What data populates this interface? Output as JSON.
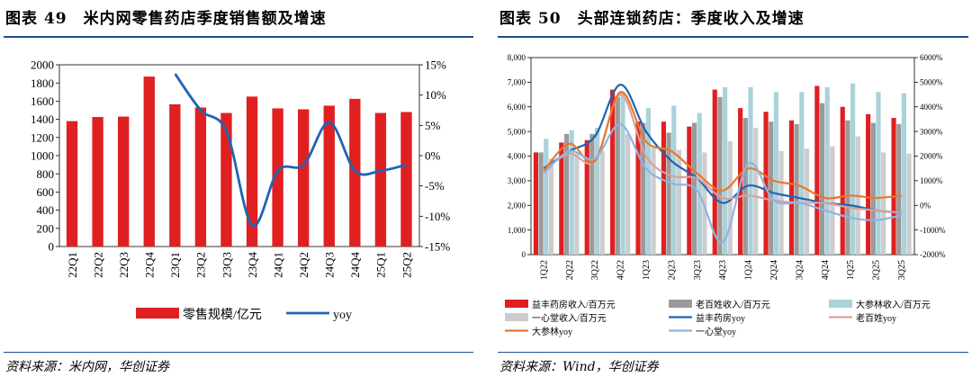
{
  "charts": {
    "left": {
      "title": "图表 49　米内网零售药店季度销售额及增速",
      "source": "资料来源：米内网，华创证券"
    },
    "right": {
      "title": "图表 50　头部连锁药店：季度收入及增速",
      "source": "资料来源：Wind，华创证券"
    }
  },
  "chart_data": [
    {
      "type": "bar",
      "title": "米内网零售药店季度销售额及增速",
      "categories": [
        "22Q1",
        "22Q2",
        "22Q3",
        "22Q4",
        "23Q1",
        "23Q2",
        "23Q3",
        "23Q4",
        "24Q1",
        "24Q2",
        "24Q3",
        "24Q4",
        "25Q1",
        "25Q2"
      ],
      "series": [
        {
          "name": "零售规模/亿元",
          "type": "bar",
          "axis": "left",
          "color": "#e02020",
          "values": [
            1380,
            1425,
            1430,
            1870,
            1565,
            1530,
            1470,
            1650,
            1520,
            1510,
            1550,
            1625,
            1470,
            1480
          ]
        },
        {
          "name": "yoy",
          "type": "line",
          "axis": "right",
          "color": "#1f64b4",
          "values": [
            null,
            null,
            null,
            null,
            13.5,
            7.5,
            4.0,
            -11.5,
            -2.5,
            -1.5,
            5.5,
            -2.5,
            -2.5,
            -1.5
          ]
        }
      ],
      "yleft": {
        "min": 0,
        "max": 2000,
        "ticks": [
          0,
          200,
          400,
          600,
          800,
          1000,
          1200,
          1400,
          1600,
          1800,
          2000
        ]
      },
      "yright": {
        "min": -15,
        "max": 15,
        "ticks": [
          -15,
          -10,
          -5,
          0,
          5,
          10,
          15
        ],
        "tick_labels": [
          "-15%",
          "-10%",
          "-5%",
          "0%",
          "5%",
          "10%",
          "15%"
        ]
      },
      "legend_position": "bottom"
    },
    {
      "type": "bar",
      "title": "头部连锁药店：季度收入及增速",
      "categories": [
        "1Q22",
        "2Q22",
        "3Q22",
        "4Q22",
        "1Q23",
        "2Q23",
        "3Q23",
        "4Q23",
        "1Q24",
        "2Q24",
        "3Q24",
        "4Q24",
        "1Q25",
        "2Q25",
        "3Q25"
      ],
      "series": [
        {
          "name": "益丰药房收入/百万元",
          "type": "bar",
          "axis": "left",
          "color": "#e02020",
          "values": [
            4150,
            4550,
            4650,
            6700,
            5400,
            5400,
            5200,
            6700,
            5950,
            5800,
            5450,
            6850,
            6000,
            5700,
            5550
          ]
        },
        {
          "name": "老百姓收入/百万元",
          "type": "bar",
          "axis": "left",
          "color": "#9a9a9a",
          "values": [
            4150,
            4900,
            4900,
            6400,
            5350,
            4950,
            5350,
            6400,
            5550,
            5400,
            5300,
            6150,
            5450,
            5350,
            5300
          ]
        },
        {
          "name": "大参林收入/百万元",
          "type": "bar",
          "axis": "left",
          "color": "#a9d2db",
          "values": [
            4700,
            5050,
            5150,
            6600,
            5950,
            6050,
            5750,
            6800,
            6800,
            6600,
            6600,
            6800,
            6950,
            6600,
            6550
          ]
        },
        {
          "name": "一心堂收入/百万元",
          "type": "bar",
          "axis": "left",
          "color": "#cdcdcd",
          "values": [
            3900,
            4100,
            4200,
            4900,
            4350,
            4250,
            4150,
            4600,
            5150,
            4200,
            4300,
            4400,
            4800,
            4150,
            4100
          ]
        },
        {
          "name": "益丰药房yoy",
          "type": "line",
          "axis": "right",
          "color": "#1f64b4",
          "values": [
            1500,
            2200,
            2800,
            4900,
            3000,
            1800,
            1100,
            100,
            800,
            500,
            300,
            100,
            0,
            -200,
            -300
          ]
        },
        {
          "name": "老百姓yoy",
          "type": "line",
          "axis": "right",
          "color": "#d9a0a0",
          "values": [
            1400,
            2100,
            1800,
            4500,
            2000,
            1200,
            1100,
            300,
            400,
            200,
            100,
            100,
            -100,
            -200,
            -300
          ]
        },
        {
          "name": "大参林yoy",
          "type": "line",
          "axis": "right",
          "color": "#e8782d",
          "values": [
            1400,
            2500,
            1800,
            4600,
            2600,
            2200,
            1300,
            600,
            1500,
            1000,
            800,
            300,
            400,
            300,
            400
          ]
        },
        {
          "name": "一心堂yoy",
          "type": "line",
          "axis": "right",
          "color": "#8eb4e0",
          "values": [
            1300,
            2200,
            1900,
            3300,
            1500,
            900,
            600,
            -1500,
            1700,
            200,
            100,
            -200,
            -500,
            -600,
            -400
          ]
        }
      ],
      "yleft": {
        "min": 0,
        "max": 8000,
        "ticks": [
          0,
          1000,
          2000,
          3000,
          4000,
          5000,
          6000,
          7000,
          8000
        ],
        "tick_labels": [
          "0",
          "1,000",
          "2,000",
          "3,000",
          "4,000",
          "5,000",
          "6,000",
          "7,000",
          "8,000"
        ]
      },
      "yright": {
        "min": -2000,
        "max": 6000,
        "ticks": [
          -2000,
          -1000,
          0,
          1000,
          2000,
          3000,
          4000,
          5000,
          6000
        ],
        "tick_labels": [
          "-2000%",
          "-1000%",
          "0%",
          "1000%",
          "2000%",
          "3000%",
          "4000%",
          "5000%",
          "6000%"
        ]
      },
      "legend_position": "bottom"
    }
  ]
}
